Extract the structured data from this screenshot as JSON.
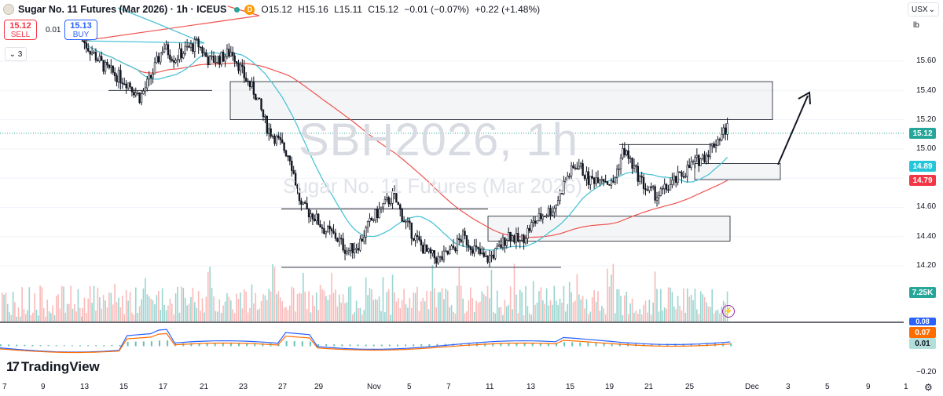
{
  "header": {
    "title": "Sugar No. 11 Futures (Mar 2026) · 1h · ICEUS",
    "badge": "D",
    "ohlc": {
      "open": "O15.12",
      "high": "H15.16",
      "low": "L15.11",
      "close": "C15.12",
      "change": "−0.01 (−0.07%)",
      "extra": "+0.22 (+1.48%)"
    }
  },
  "trade": {
    "sell_price": "15.12",
    "sell_label": "SELL",
    "spread": "0.01",
    "buy_price": "15.13",
    "buy_label": "BUY",
    "indicators_count": "3"
  },
  "right_panel": {
    "currency": "USX",
    "unit": "lb"
  },
  "watermark": {
    "symbol": "SBH2026, 1h",
    "name": "Sugar No. 11 Futures (Mar 2026)"
  },
  "brand": "TradingView",
  "price_labels": {
    "last": "15.12",
    "last_color": "#26a69a",
    "ma_fast": "14.89",
    "ma_fast_color": "#26c6da",
    "ma_slow": "14.79",
    "ma_slow_color": "#f23645",
    "volume": "7.25K",
    "volume_color": "#26a69a",
    "macd_top": "0.08",
    "macd_top_color": "#2962ff",
    "macd_mid": "0.07",
    "macd_mid_color": "#ff6d00",
    "macd_hist": "0.01",
    "macd_hist_color": "#b2dfdb"
  },
  "y_ticks": [
    "15.60",
    "15.40",
    "15.20",
    "15.00",
    "14.80",
    "14.60",
    "14.40",
    "14.20"
  ],
  "macd_ticks": [
    "−0.20"
  ],
  "x_ticks": [
    "7",
    "9",
    "13",
    "15",
    "17",
    "21",
    "23",
    "27",
    "29",
    "Nov",
    "5",
    "7",
    "11",
    "13",
    "15",
    "19",
    "21",
    "25",
    "Dec",
    "3",
    "5",
    "9",
    "1"
  ],
  "chart_data": {
    "type": "candlestick",
    "symbol": "SBH2026",
    "interval": "1h",
    "price_range": [
      14.1,
      15.75
    ],
    "last_price": 15.12,
    "ma_fast_last": 14.89,
    "ma_slow_last": 14.79,
    "close_path": [
      [
        0,
        15.74
      ],
      [
        4,
        15.55
      ],
      [
        8,
        15.45
      ],
      [
        10,
        15.35
      ],
      [
        12,
        15.5
      ],
      [
        14,
        15.7
      ],
      [
        16,
        15.62
      ],
      [
        18,
        15.68
      ],
      [
        20,
        15.72
      ],
      [
        22,
        15.6
      ],
      [
        24,
        15.62
      ],
      [
        26,
        15.67
      ],
      [
        28,
        15.5
      ],
      [
        30,
        15.38
      ],
      [
        32,
        15.15
      ],
      [
        34,
        15.05
      ],
      [
        36,
        14.95
      ],
      [
        38,
        14.6
      ],
      [
        40,
        14.55
      ],
      [
        42,
        14.45
      ],
      [
        44,
        14.4
      ],
      [
        46,
        14.3
      ],
      [
        48,
        14.35
      ],
      [
        50,
        14.5
      ],
      [
        52,
        14.6
      ],
      [
        54,
        14.68
      ],
      [
        56,
        14.5
      ],
      [
        58,
        14.38
      ],
      [
        60,
        14.28
      ],
      [
        62,
        14.24
      ],
      [
        64,
        14.3
      ],
      [
        66,
        14.4
      ],
      [
        68,
        14.32
      ],
      [
        70,
        14.24
      ],
      [
        72,
        14.3
      ],
      [
        74,
        14.42
      ],
      [
        76,
        14.36
      ],
      [
        78,
        14.48
      ],
      [
        80,
        14.55
      ],
      [
        82,
        14.6
      ],
      [
        84,
        14.8
      ],
      [
        86,
        14.9
      ],
      [
        88,
        14.78
      ],
      [
        90,
        14.82
      ],
      [
        92,
        14.75
      ],
      [
        94,
        15.0
      ],
      [
        96,
        14.85
      ],
      [
        98,
        14.72
      ],
      [
        100,
        14.68
      ],
      [
        102,
        14.75
      ],
      [
        104,
        14.82
      ],
      [
        106,
        14.9
      ],
      [
        108,
        14.95
      ],
      [
        110,
        15.05
      ],
      [
        112,
        15.15
      ]
    ],
    "zones": [
      {
        "name": "supply-zone-upper",
        "low": 15.2,
        "high": 15.46
      },
      {
        "name": "demand-zone-right",
        "low": 14.79,
        "high": 14.9
      },
      {
        "name": "demand-zone-mid",
        "low": 14.37,
        "high": 14.54
      }
    ],
    "volume_last": "7.25K",
    "macd": {
      "macd": 0.08,
      "signal": 0.07,
      "hist": 0.01
    }
  }
}
